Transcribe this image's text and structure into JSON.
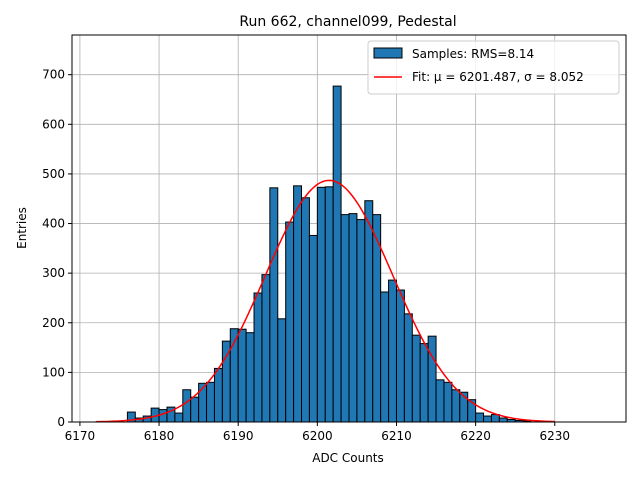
{
  "chart_data": {
    "type": "bar",
    "title": "Run 662, channel099, Pedestal",
    "xlabel": "ADC Counts",
    "ylabel": "Entries",
    "xlim": [
      6169,
      6239
    ],
    "ylim": [
      0,
      780
    ],
    "xticks": [
      6170,
      6180,
      6190,
      6200,
      6210,
      6220,
      6230
    ],
    "yticks": [
      0,
      100,
      200,
      300,
      400,
      500,
      600,
      700
    ],
    "grid": true,
    "legend_position": "top-right",
    "bin_width": 1,
    "histogram": {
      "name": "Samples: RMS=8.14",
      "color": "#1f77b4",
      "bin_left": [
        6176,
        6177,
        6178,
        6179,
        6180,
        6181,
        6182,
        6183,
        6184,
        6185,
        6186,
        6187,
        6188,
        6189,
        6190,
        6191,
        6192,
        6193,
        6194,
        6195,
        6196,
        6197,
        6198,
        6199,
        6200,
        6201,
        6202,
        6203,
        6204,
        6205,
        6206,
        6207,
        6208,
        6209,
        6210,
        6211,
        6212,
        6213,
        6214,
        6215,
        6216,
        6217,
        6218,
        6219,
        6220,
        6221,
        6222,
        6223,
        6224,
        6225,
        6226
      ],
      "counts": [
        20,
        8,
        12,
        28,
        25,
        30,
        18,
        65,
        50,
        78,
        80,
        108,
        163,
        188,
        187,
        180,
        260,
        297,
        472,
        208,
        403,
        476,
        452,
        376,
        473,
        474,
        677,
        418,
        420,
        408,
        446,
        418,
        262,
        286,
        266,
        218,
        175,
        158,
        173,
        85,
        80,
        65,
        60,
        45,
        18,
        12,
        15,
        8,
        5,
        3,
        2
      ]
    },
    "fit": {
      "name": "Fit: μ = 6201.487, σ = 8.052",
      "color": "#ff0000",
      "mu": 6201.487,
      "sigma": 8.052,
      "amplitude": 487,
      "x_range": [
        6172,
        6230
      ]
    }
  }
}
